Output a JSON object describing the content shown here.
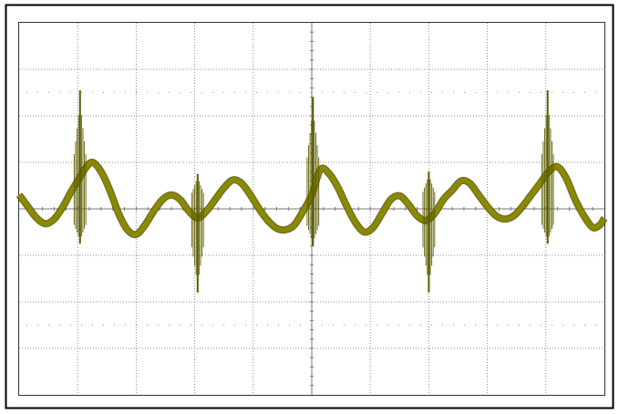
{
  "chart_data": {
    "type": "line",
    "title": "",
    "xlabel": "",
    "ylabel": "",
    "grid": true,
    "grid_divisions": {
      "x": 10,
      "y": 8
    },
    "xlim": [
      0,
      10
    ],
    "ylim": [
      -4,
      4
    ],
    "trace_color": "#8a8a00",
    "trace_edge_color": "#5c5c00",
    "series": [
      {
        "name": "",
        "points": [
          [
            0.0,
            0.3
          ],
          [
            0.15,
            0.05
          ],
          [
            0.3,
            -0.2
          ],
          [
            0.45,
            -0.32
          ],
          [
            0.6,
            -0.22
          ],
          [
            0.75,
            0.05
          ],
          [
            0.88,
            0.35
          ],
          [
            1.0,
            0.6
          ],
          [
            1.12,
            0.85
          ],
          [
            1.25,
            1.0
          ],
          [
            1.4,
            0.8
          ],
          [
            1.55,
            0.4
          ],
          [
            1.7,
            -0.1
          ],
          [
            1.85,
            -0.45
          ],
          [
            2.0,
            -0.55
          ],
          [
            2.15,
            -0.35
          ],
          [
            2.3,
            -0.05
          ],
          [
            2.45,
            0.2
          ],
          [
            2.6,
            0.3
          ],
          [
            2.75,
            0.2
          ],
          [
            2.9,
            -0.05
          ],
          [
            3.05,
            -0.2
          ],
          [
            3.2,
            -0.05
          ],
          [
            3.35,
            0.2
          ],
          [
            3.5,
            0.45
          ],
          [
            3.65,
            0.62
          ],
          [
            3.8,
            0.55
          ],
          [
            3.95,
            0.3
          ],
          [
            4.1,
            0.0
          ],
          [
            4.25,
            -0.25
          ],
          [
            4.4,
            -0.42
          ],
          [
            4.55,
            -0.45
          ],
          [
            4.7,
            -0.35
          ],
          [
            4.85,
            -0.05
          ],
          [
            5.0,
            0.3
          ],
          [
            5.15,
            0.85
          ],
          [
            5.3,
            0.75
          ],
          [
            5.45,
            0.45
          ],
          [
            5.6,
            0.05
          ],
          [
            5.75,
            -0.3
          ],
          [
            5.9,
            -0.5
          ],
          [
            6.05,
            -0.4
          ],
          [
            6.2,
            -0.1
          ],
          [
            6.35,
            0.2
          ],
          [
            6.5,
            0.28
          ],
          [
            6.65,
            0.1
          ],
          [
            6.8,
            -0.15
          ],
          [
            6.95,
            -0.25
          ],
          [
            7.1,
            -0.1
          ],
          [
            7.25,
            0.2
          ],
          [
            7.4,
            0.4
          ],
          [
            7.55,
            0.6
          ],
          [
            7.7,
            0.55
          ],
          [
            7.85,
            0.3
          ],
          [
            8.0,
            0.05
          ],
          [
            8.15,
            -0.15
          ],
          [
            8.3,
            -0.22
          ],
          [
            8.45,
            -0.15
          ],
          [
            8.6,
            0.05
          ],
          [
            8.75,
            0.3
          ],
          [
            8.9,
            0.55
          ],
          [
            9.05,
            0.8
          ],
          [
            9.2,
            0.9
          ],
          [
            9.35,
            0.65
          ],
          [
            9.5,
            0.2
          ],
          [
            9.65,
            -0.15
          ],
          [
            9.8,
            -0.4
          ],
          [
            9.92,
            -0.35
          ],
          [
            10.0,
            -0.2
          ]
        ],
        "spikes": [
          {
            "x": 1.04,
            "max": 2.55,
            "min": -0.75
          },
          {
            "x": 3.05,
            "max": 0.75,
            "min": -1.8
          },
          {
            "x": 5.02,
            "max": 2.4,
            "min": -0.8
          },
          {
            "x": 7.0,
            "max": 0.8,
            "min": -1.8
          },
          {
            "x": 9.03,
            "max": 2.55,
            "min": -0.75
          }
        ]
      }
    ]
  }
}
